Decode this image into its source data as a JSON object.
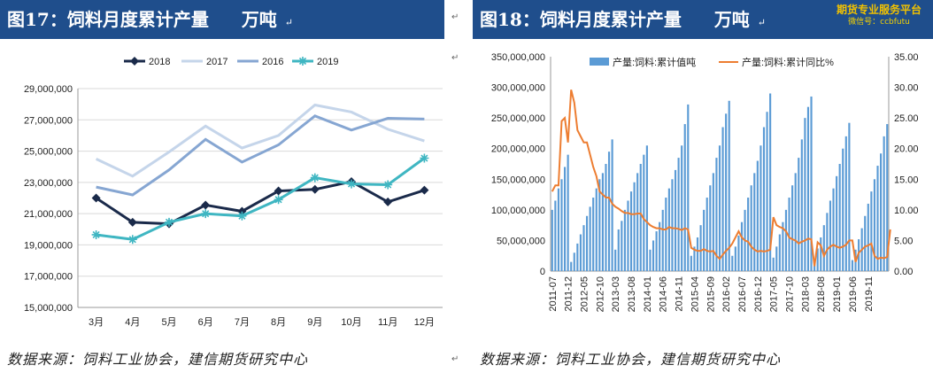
{
  "left": {
    "title": "图17：饲料月度累计产量",
    "unit": "万吨",
    "source": "数据来源：饲料工业协会，建信期货研究中心",
    "chart_data": {
      "type": "line",
      "categories": [
        "3月",
        "4月",
        "5月",
        "6月",
        "7月",
        "8月",
        "9月",
        "10月",
        "11月",
        "12月"
      ],
      "ylim": [
        15000000,
        29000000
      ],
      "yticks": [
        "15,000,000",
        "17,000,000",
        "19,000,000",
        "21,000,000",
        "23,000,000",
        "25,000,000",
        "27,000,000",
        "29,000,000"
      ],
      "ytick_values": [
        15000000,
        17000000,
        19000000,
        21000000,
        23000000,
        25000000,
        27000000,
        29000000
      ],
      "legend_position": "top",
      "grid": "horizontal",
      "series": [
        {
          "name": "2018",
          "color": "#1a2a4a",
          "marker": "diamond",
          "values": [
            22000000,
            20450000,
            20350000,
            21550000,
            21150000,
            22450000,
            22550000,
            23050000,
            21750000,
            22500000
          ]
        },
        {
          "name": "2017",
          "color": "#c5d5ea",
          "marker": "none",
          "values": [
            24500000,
            23400000,
            24950000,
            26600000,
            25200000,
            26000000,
            27950000,
            27500000,
            26400000,
            25650000
          ]
        },
        {
          "name": "2016",
          "color": "#86a6d2",
          "marker": "none",
          "values": [
            22700000,
            22200000,
            23800000,
            25750000,
            24300000,
            25400000,
            27250000,
            26350000,
            27100000,
            27050000
          ]
        },
        {
          "name": "2019",
          "color": "#3fb6c2",
          "marker": "asterisk",
          "values": [
            19650000,
            19350000,
            20450000,
            21000000,
            20850000,
            21900000,
            23300000,
            22900000,
            22850000,
            24550000
          ]
        }
      ]
    }
  },
  "right": {
    "title": "图18：饲料月度累计产量",
    "unit": "万吨",
    "source": "数据来源：饲料工业协会，建信期货研究中心",
    "watermark_line1": "期货专业服务平台",
    "watermark_line2": "微信号：ccbfutu",
    "chart_data": {
      "type": "bar+line",
      "left_ylim": [
        0,
        350000000
      ],
      "left_yticks": [
        "0",
        "50,000,000",
        "100,000,000",
        "150,000,000",
        "200,000,000",
        "250,000,000",
        "300,000,000",
        "350,000,000"
      ],
      "left_ytick_values": [
        0,
        50000000,
        100000000,
        150000000,
        200000000,
        250000000,
        300000000,
        350000000
      ],
      "right_ylim": [
        0,
        35
      ],
      "right_yticks": [
        "0.00",
        "5.00",
        "10.00",
        "15.00",
        "20.00",
        "25.00",
        "30.00",
        "35.00"
      ],
      "right_ytick_values": [
        0,
        5,
        10,
        15,
        20,
        25,
        30,
        35
      ],
      "x_tick_labels": [
        "2011-07",
        "2011-12",
        "2012-05",
        "2012-10",
        "2013-03",
        "2013-08",
        "2014-01",
        "2014-06",
        "2014-11",
        "2015-04",
        "2015-09",
        "2016-02",
        "2016-07",
        "2016-12",
        "2017-05",
        "2017-10",
        "2018-03",
        "2018-08",
        "2019-01",
        "2019-06",
        "2019-11"
      ],
      "legend_position": "top",
      "series": [
        {
          "name": "产量:饲料:累计值吨",
          "type": "bar",
          "axis": "left",
          "color": "#5b9bd5",
          "values": [
            100000000,
            115000000,
            135000000,
            150000000,
            170000000,
            190000000,
            15000000,
            30000000,
            45000000,
            60000000,
            75000000,
            90000000,
            105000000,
            120000000,
            135000000,
            150000000,
            160000000,
            175000000,
            195000000,
            215000000,
            35000000,
            68000000,
            82000000,
            100000000,
            115000000,
            130000000,
            145000000,
            160000000,
            175000000,
            190000000,
            205000000,
            35000000,
            50000000,
            65000000,
            80000000,
            100000000,
            120000000,
            135000000,
            150000000,
            165000000,
            185000000,
            205000000,
            240000000,
            272000000,
            25000000,
            40000000,
            55000000,
            75000000,
            100000000,
            120000000,
            140000000,
            160000000,
            185000000,
            205000000,
            235000000,
            257000000,
            278000000,
            25000000,
            40000000,
            58000000,
            80000000,
            100000000,
            120000000,
            140000000,
            160000000,
            180000000,
            205000000,
            235000000,
            260000000,
            290000000,
            22000000,
            40000000,
            60000000,
            80000000,
            100000000,
            120000000,
            140000000,
            160000000,
            185000000,
            215000000,
            250000000,
            268000000,
            285000000,
            20000000,
            37000000,
            55000000,
            75000000,
            95000000,
            115000000,
            135000000,
            155000000,
            175000000,
            200000000,
            220000000,
            242000000,
            18000000,
            35000000,
            52000000,
            70000000,
            90000000,
            110000000,
            130000000,
            150000000,
            172000000,
            192000000,
            220000000,
            240000000
          ]
        },
        {
          "name": "产量:饲料:累计同比%",
          "type": "line",
          "axis": "right",
          "color": "#ed7d31",
          "values": [
            13.0,
            14.0,
            14.0,
            24.5,
            25.0,
            21.0,
            29.6,
            27.5,
            23.0,
            22.0,
            21.0,
            21.0,
            19.0,
            17.0,
            15.5,
            13.0,
            12.5,
            12.0,
            12.0,
            11.0,
            10.5,
            10.2,
            9.8,
            9.5,
            9.5,
            9.3,
            9.3,
            9.4,
            9.4,
            8.5,
            8.0,
            7.5,
            7.2,
            7.0,
            7.0,
            6.8,
            6.8,
            7.2,
            7.0,
            7.0,
            6.9,
            6.7,
            7.0,
            6.8,
            3.8,
            3.5,
            3.3,
            3.3,
            3.6,
            3.3,
            3.2,
            3.3,
            2.5,
            2.0,
            2.7,
            3.3,
            3.8,
            4.5,
            5.5,
            6.5,
            5.5,
            5.0,
            4.8,
            4.0,
            3.5,
            3.2,
            3.3,
            3.2,
            3.3,
            3.5,
            8.8,
            7.5,
            7.2,
            7.0,
            6.5,
            5.5,
            5.2,
            5.0,
            4.5,
            4.8,
            5.0,
            5.3,
            5.2,
            0.8,
            4.7,
            4.2,
            2.5,
            3.5,
            4.0,
            4.3,
            4.0,
            3.8,
            4.0,
            4.3,
            5.0,
            5.0,
            1.5,
            3.0,
            3.5,
            4.0,
            4.2,
            4.5,
            2.5,
            2.0,
            2.2,
            2.1,
            2.3,
            6.8
          ]
        }
      ]
    }
  }
}
